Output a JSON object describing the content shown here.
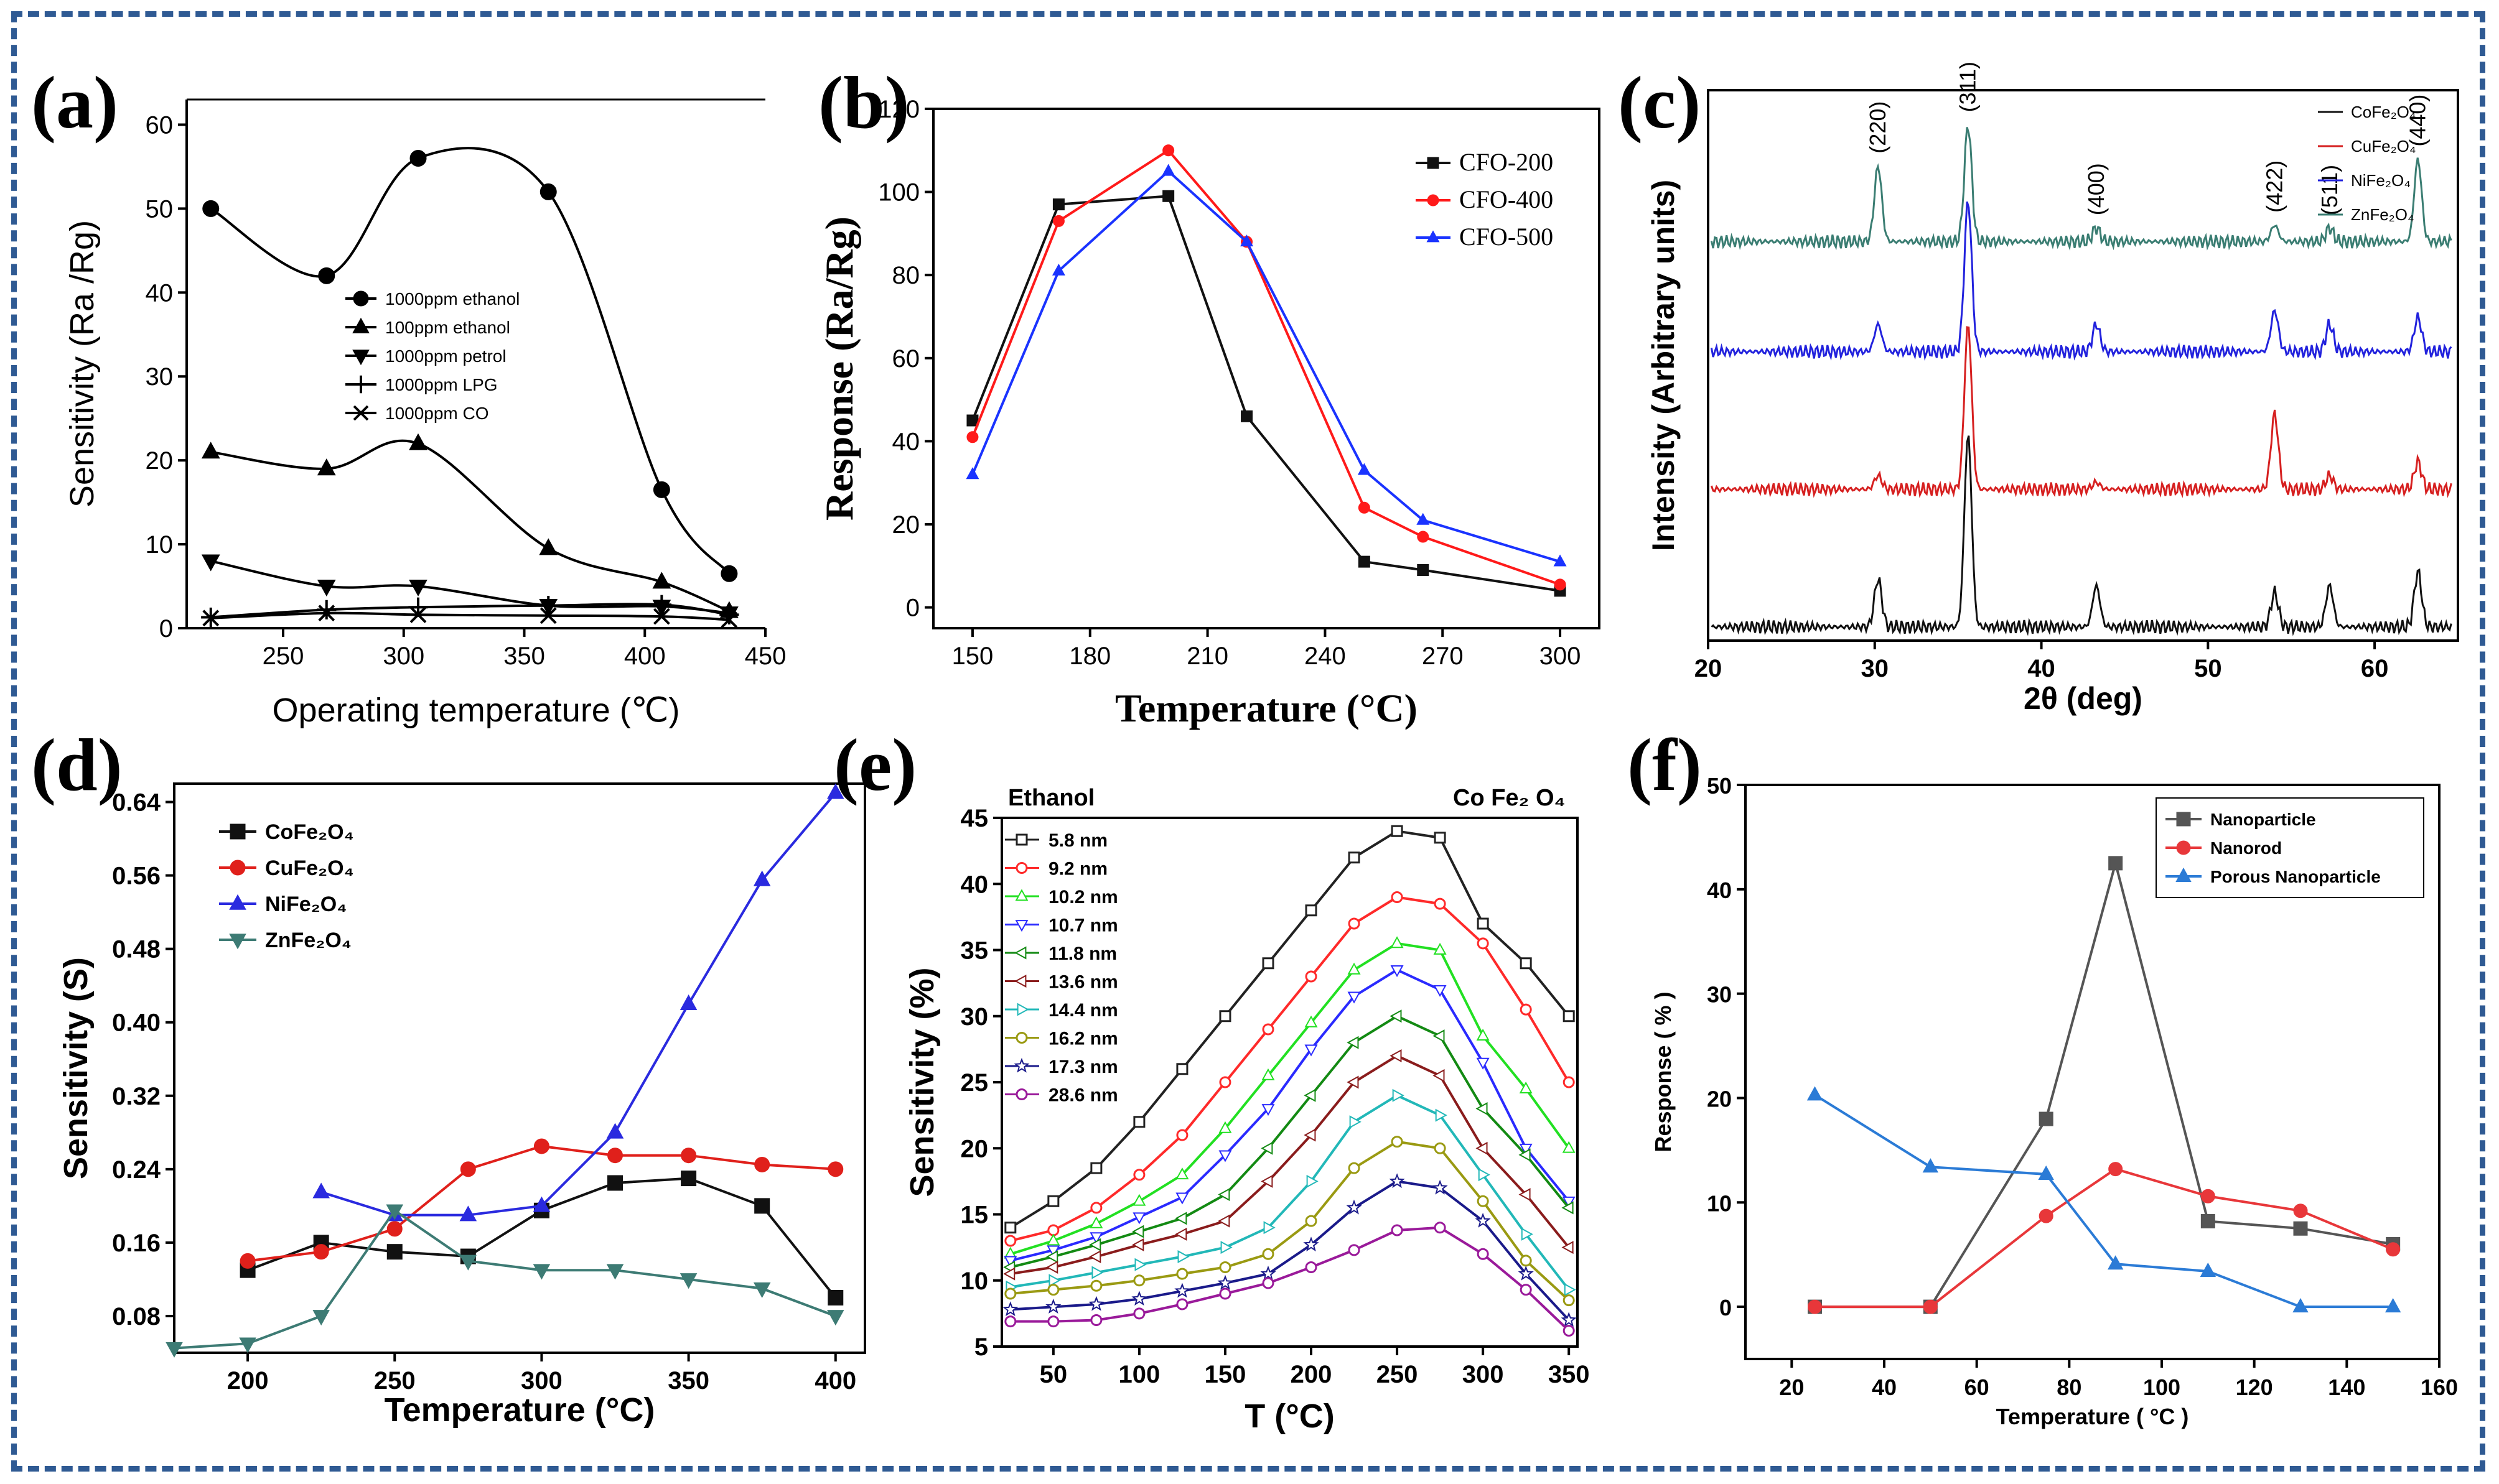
{
  "figure": {
    "panel_labels": [
      "(a)",
      "(b)",
      "(c)",
      "(d)",
      "(e)",
      "(f)"
    ],
    "border_color": "#2f5a93"
  },
  "chart_data": [
    {
      "id": "a",
      "type": "line",
      "title": "",
      "xlabel": "Operating temperature (℃)",
      "ylabel": "Sensitivity (Ra /Rg)",
      "xlim": [
        210,
        450
      ],
      "ylim": [
        0,
        63
      ],
      "xticks": [
        250,
        300,
        350,
        400,
        450
      ],
      "yticks": [
        0,
        10,
        20,
        30,
        40,
        50,
        60
      ],
      "legend_position": "center",
      "series": [
        {
          "name": "1000ppm ethanol",
          "color": "#000000",
          "marker": "circle",
          "x": [
            220,
            268,
            306,
            360,
            407,
            435
          ],
          "y": [
            50,
            42,
            56,
            52,
            16.5,
            6.5
          ]
        },
        {
          "name": "100ppm ethanol",
          "color": "#000000",
          "marker": "triangle-up",
          "x": [
            220,
            268,
            306,
            360,
            407,
            435
          ],
          "y": [
            21,
            19,
            22,
            9.5,
            5.5,
            2
          ]
        },
        {
          "name": "1000ppm petrol",
          "color": "#000000",
          "marker": "triangle-down",
          "x": [
            220,
            268,
            306,
            360,
            407,
            435
          ],
          "y": [
            8,
            5,
            5,
            2.7,
            2.6,
            1.8
          ]
        },
        {
          "name": "1000ppm LPG",
          "color": "#000000",
          "marker": "plus",
          "x": [
            220,
            268,
            306,
            360,
            407,
            435
          ],
          "y": [
            1.3,
            2.2,
            2.5,
            2.7,
            2.8,
            1.6
          ]
        },
        {
          "name": "1000ppm CO",
          "color": "#000000",
          "marker": "cross",
          "x": [
            220,
            268,
            306,
            360,
            407,
            435
          ],
          "y": [
            1.2,
            1.8,
            1.6,
            1.5,
            1.4,
            1.0
          ]
        }
      ]
    },
    {
      "id": "b",
      "type": "line",
      "title": "",
      "xlabel": "Temperature (°C)",
      "ylabel": "Response (Ra/Rg)",
      "xlim": [
        140,
        310
      ],
      "ylim": [
        -5,
        120
      ],
      "xticks": [
        150,
        180,
        210,
        240,
        270,
        300
      ],
      "yticks": [
        0,
        20,
        40,
        60,
        80,
        100,
        120
      ],
      "legend_position": "top-right",
      "series": [
        {
          "name": "CFO-200",
          "color": "#111111",
          "marker": "square",
          "x": [
            150,
            172,
            200,
            220,
            250,
            265,
            300
          ],
          "y": [
            45,
            97,
            99,
            46,
            11,
            9,
            4
          ]
        },
        {
          "name": "CFO-400",
          "color": "#ff1a1a",
          "marker": "circle",
          "x": [
            150,
            172,
            200,
            220,
            250,
            265,
            300
          ],
          "y": [
            41,
            93,
            110,
            88,
            24,
            17,
            5.5
          ]
        },
        {
          "name": "CFO-500",
          "color": "#1a33ff",
          "marker": "triangle-up",
          "x": [
            150,
            172,
            200,
            220,
            250,
            265,
            300
          ],
          "y": [
            32,
            81,
            105,
            88,
            33,
            21,
            11
          ]
        }
      ]
    },
    {
      "id": "c",
      "type": "line",
      "title": "",
      "xlabel": "2θ (deg)",
      "ylabel": "Intensity (Arbitrary units)",
      "xlim": [
        20,
        65
      ],
      "ylim": [
        0,
        4
      ],
      "xticks": [
        20,
        30,
        40,
        50,
        60
      ],
      "legend_position": "top-right",
      "peak_positions": [
        30.2,
        35.6,
        43.3,
        54.0,
        57.3,
        62.6
      ],
      "peak_labels": [
        "(220)",
        "(311)",
        "(400)",
        "(422)",
        "(511)",
        "(440)"
      ],
      "series": [
        {
          "name": "CoFe₂O₄",
          "color": "#111111",
          "offset": 0.1,
          "peak_heights": [
            0.35,
            1.4,
            0.3,
            0.25,
            0.3,
            0.4
          ]
        },
        {
          "name": "CuFe₂O₄",
          "color": "#d62020",
          "offset": 1.1,
          "peak_heights": [
            0.1,
            1.2,
            0.05,
            0.55,
            0.1,
            0.2
          ]
        },
        {
          "name": "NiFe₂O₄",
          "color": "#2222dd",
          "offset": 2.1,
          "peak_heights": [
            0.2,
            1.1,
            0.2,
            0.3,
            0.2,
            0.25
          ]
        },
        {
          "name": "ZnFe₂O₄",
          "color": "#3a7d72",
          "offset": 2.9,
          "peak_heights": [
            0.55,
            0.85,
            0.1,
            0.12,
            0.1,
            0.6
          ]
        }
      ]
    },
    {
      "id": "d",
      "type": "line",
      "title": "",
      "xlabel": "Temperature (°C)",
      "ylabel": "Sensitivity (S)",
      "xlim": [
        175,
        410
      ],
      "ylim": [
        0.04,
        0.66
      ],
      "xticks": [
        200,
        250,
        300,
        350,
        400
      ],
      "yticks": [
        0.08,
        0.16,
        0.24,
        0.32,
        0.4,
        0.48,
        0.56,
        0.64
      ],
      "legend_position": "top-left",
      "series": [
        {
          "name": "CoFe₂O₄",
          "color": "#111111",
          "marker": "square",
          "x": [
            200,
            225,
            250,
            275,
            300,
            325,
            350,
            375,
            400
          ],
          "y": [
            0.13,
            0.16,
            0.15,
            0.145,
            0.195,
            0.225,
            0.23,
            0.2,
            0.1
          ]
        },
        {
          "name": "CuFe₂O₄",
          "color": "#e0201b",
          "marker": "circle",
          "x": [
            200,
            225,
            250,
            275,
            300,
            325,
            350,
            375,
            400
          ],
          "y": [
            0.14,
            0.15,
            0.175,
            0.24,
            0.265,
            0.255,
            0.255,
            0.245,
            0.24
          ]
        },
        {
          "name": "NiFe₂O₄",
          "color": "#2a2adf",
          "marker": "triangle-up",
          "x": [
            225,
            250,
            275,
            300,
            325,
            350,
            375,
            400
          ],
          "y": [
            0.215,
            0.19,
            0.19,
            0.2,
            0.28,
            0.42,
            0.555,
            0.65
          ]
        },
        {
          "name": "ZnFe₂O₄",
          "color": "#3d7b74",
          "marker": "triangle-down",
          "x": [
            175,
            200,
            225,
            250,
            275,
            300,
            325,
            350,
            375,
            400
          ],
          "y": [
            0.045,
            0.05,
            0.08,
            0.195,
            0.14,
            0.13,
            0.13,
            0.12,
            0.11,
            0.08
          ]
        }
      ]
    },
    {
      "id": "e",
      "type": "line",
      "title": "Ethanol",
      "subtitle": "Co Fe₂ O₄",
      "xlabel": "T (°C)",
      "ylabel": "Sensitivity (%)",
      "xlim": [
        20,
        355
      ],
      "ylim": [
        5,
        45
      ],
      "xticks": [
        50,
        100,
        150,
        200,
        250,
        300,
        350
      ],
      "yticks": [
        5,
        10,
        15,
        20,
        25,
        30,
        35,
        40,
        45
      ],
      "legend_position": "top-left",
      "x": [
        25,
        50,
        75,
        100,
        125,
        150,
        175,
        200,
        225,
        250,
        275,
        300,
        325,
        350
      ],
      "series": [
        {
          "name": "5.8 nm",
          "color": "#222222",
          "marker": "square",
          "values": [
            14,
            16,
            18.5,
            22,
            26,
            30,
            34,
            38,
            42,
            44,
            43.5,
            37,
            34,
            30
          ]
        },
        {
          "name": "9.2 nm",
          "color": "#ff2a2a",
          "marker": "circle",
          "values": [
            13,
            13.8,
            15.5,
            18,
            21,
            25,
            29,
            33,
            37,
            39,
            38.5,
            35.5,
            30.5,
            25
          ]
        },
        {
          "name": "10.2 nm",
          "color": "#22e022",
          "marker": "triangle-up",
          "values": [
            12,
            13,
            14.3,
            16,
            18,
            21.5,
            25.5,
            29.5,
            33.5,
            35.5,
            35,
            28.5,
            24.5,
            20
          ]
        },
        {
          "name": "10.7 nm",
          "color": "#2a2aff",
          "marker": "triangle-down",
          "values": [
            11.5,
            12.3,
            13.3,
            14.8,
            16.3,
            19.5,
            23,
            27.5,
            31.5,
            33.5,
            32,
            26.5,
            20,
            16
          ]
        },
        {
          "name": "11.8 nm",
          "color": "#138a13",
          "marker": "triangle-left",
          "values": [
            11,
            11.8,
            12.7,
            13.7,
            14.7,
            16.5,
            20,
            24,
            28,
            30,
            28.5,
            23,
            19.5,
            15.5
          ]
        },
        {
          "name": "13.6 nm",
          "color": "#8a1c1c",
          "marker": "triangle-left",
          "values": [
            10.5,
            11,
            11.8,
            12.7,
            13.5,
            14.5,
            17.5,
            21,
            25,
            27,
            25.5,
            20,
            16.5,
            12.5
          ]
        },
        {
          "name": "14.4 nm",
          "color": "#22b8b8",
          "marker": "triangle-right",
          "values": [
            9.5,
            10,
            10.6,
            11.2,
            11.8,
            12.5,
            14,
            17.5,
            22,
            24,
            22.5,
            18,
            13.5,
            9.3
          ]
        },
        {
          "name": "16.2 nm",
          "color": "#9a9a12",
          "marker": "circle",
          "values": [
            9,
            9.3,
            9.6,
            10,
            10.5,
            11,
            12,
            14.5,
            18.5,
            20.5,
            20,
            16,
            11.5,
            8.5
          ]
        },
        {
          "name": "17.3 nm",
          "color": "#1a1a8a",
          "marker": "star",
          "values": [
            7.8,
            8,
            8.2,
            8.6,
            9.2,
            9.8,
            10.5,
            12.7,
            15.5,
            17.5,
            17,
            14.5,
            10.5,
            7
          ]
        },
        {
          "name": "28.6 nm",
          "color": "#9a1a9a",
          "marker": "circle",
          "values": [
            6.9,
            6.9,
            7,
            7.5,
            8.2,
            9,
            9.8,
            11,
            12.3,
            13.8,
            14,
            12,
            9.3,
            6.2
          ]
        }
      ]
    },
    {
      "id": "f",
      "type": "line",
      "title": "",
      "xlabel": "Temperature ( °C )",
      "ylabel": "Response ( % )",
      "xlim": [
        10,
        160
      ],
      "ylim": [
        -5,
        50
      ],
      "xticks": [
        20,
        40,
        60,
        80,
        100,
        120,
        140,
        160
      ],
      "yticks": [
        0,
        10,
        20,
        30,
        40,
        50
      ],
      "legend_position": "top-right",
      "series": [
        {
          "name": "Nanoparticle",
          "color": "#555555",
          "marker": "square",
          "x": [
            25,
            50,
            75,
            90,
            110,
            130,
            150
          ],
          "y": [
            0,
            0,
            18,
            42.5,
            8.2,
            7.5,
            6
          ]
        },
        {
          "name": "Nanorod",
          "color": "#e8373a",
          "marker": "circle",
          "x": [
            25,
            50,
            75,
            90,
            110,
            130,
            150
          ],
          "y": [
            0,
            0,
            8.7,
            13.2,
            10.6,
            9.2,
            5.5
          ]
        },
        {
          "name": "Porous Nanoparticle",
          "color": "#2b7bd6",
          "marker": "triangle-up",
          "x": [
            25,
            50,
            75,
            90,
            110,
            130,
            150
          ],
          "y": [
            20.3,
            13.4,
            12.7,
            4.1,
            3.4,
            0,
            0
          ]
        }
      ]
    }
  ]
}
